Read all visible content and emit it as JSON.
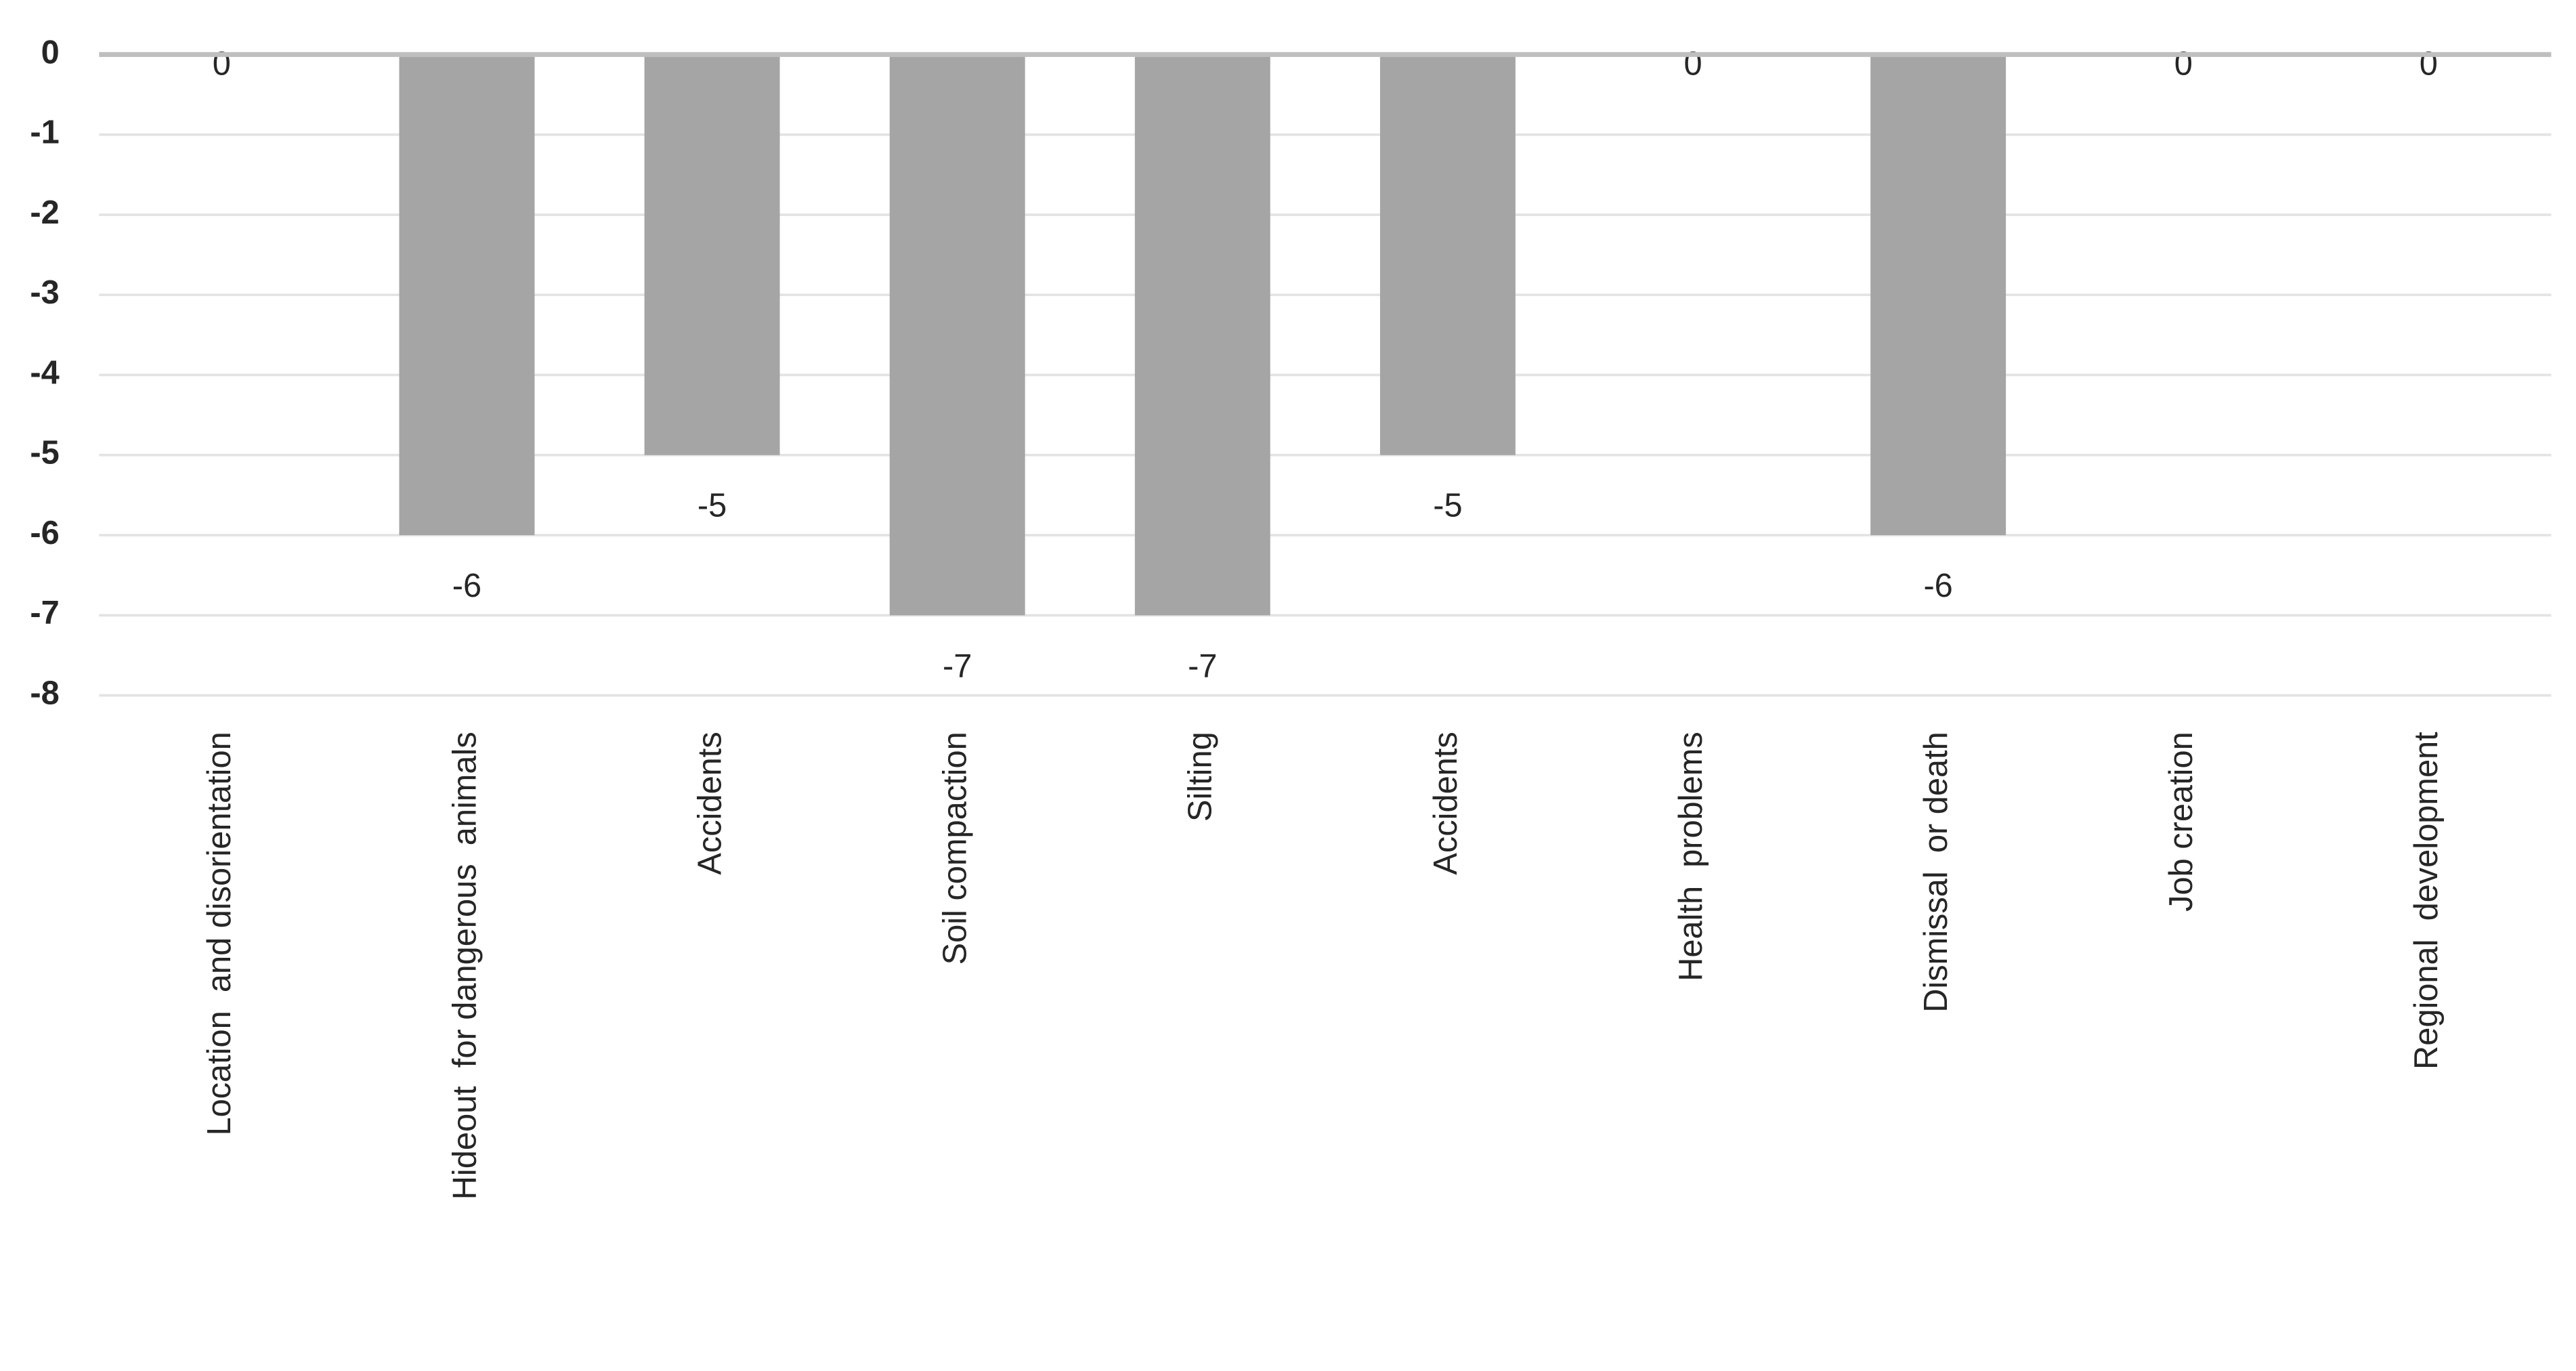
{
  "chart_data": {
    "type": "bar",
    "categories": [
      "Location  and disorientation",
      "Hideout  for dangerous  animals",
      "Accidents",
      "Soil compaction",
      "Silting",
      "Accidents",
      "Health  problems",
      "Dismissal  or death",
      "Job creation",
      "Regional  development"
    ],
    "values": [
      0,
      -6,
      -5,
      -7,
      -7,
      -5,
      0,
      -6,
      0,
      0
    ],
    "color": "#a5a5a5",
    "ylim": [
      -8,
      0
    ],
    "yticks": [
      0,
      -1,
      -2,
      -3,
      -4,
      -5,
      -6,
      -7,
      -8
    ],
    "grid": true
  }
}
